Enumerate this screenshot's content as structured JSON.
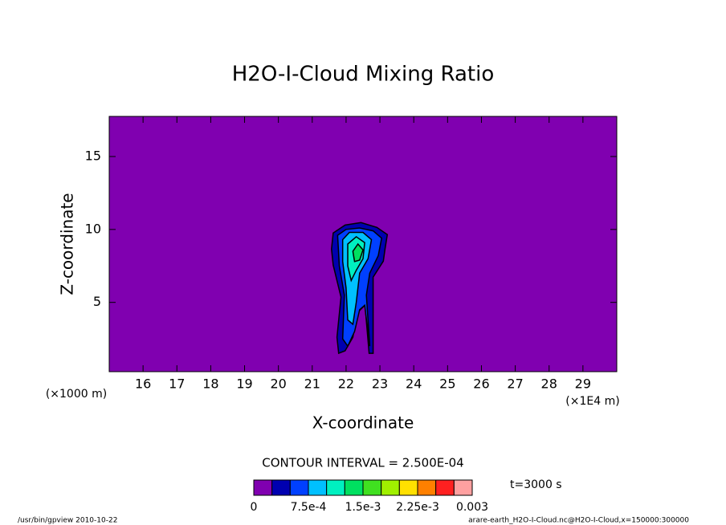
{
  "chart_data": {
    "type": "contour",
    "title": "H2O-I-Cloud Mixing Ratio",
    "x_label": "X-coordinate",
    "y_label": "Z-coordinate",
    "x_unit": "(×1E4 m)",
    "y_unit": "(×1000 m)",
    "contour_interval": "CONTOUR INTERVAL = 2.500E-04",
    "time_label": "t=3000 s",
    "footer_left": "/usr/bin/gpview  2010-10-22",
    "footer_right": "arare-earth_H2O-I-Cloud.nc@H2O-I-Cloud,x=150000:300000",
    "xlim": [
      15,
      30
    ],
    "ylim": [
      0.25,
      17.75
    ],
    "xticks": [
      16,
      17,
      18,
      19,
      20,
      21,
      22,
      23,
      24,
      25,
      26,
      27,
      28,
      29
    ],
    "yticks": [
      5,
      10,
      15
    ],
    "colorbar": {
      "levels": [
        0,
        0.00025,
        0.0005,
        0.00075,
        0.001,
        0.00125,
        0.0015,
        0.00175,
        0.002,
        0.00225,
        0.0025,
        0.00275,
        0.003
      ],
      "colors": [
        "#8000b0",
        "#0000b0",
        "#0040ff",
        "#00c0ff",
        "#00f0c0",
        "#00e060",
        "#40e020",
        "#a0f000",
        "#ffe000",
        "#ff8000",
        "#ff2020",
        "#ffa0a0"
      ],
      "ticks": [
        0,
        {
          "value": 0.00075,
          "label": "7.5e-4"
        },
        {
          "value": 0.0015,
          "label": "1.5e-3"
        },
        {
          "value": 0.00225,
          "label": "2.25e-3"
        },
        0.003
      ]
    },
    "contours": [
      {
        "level": 0.00025,
        "points": [
          [
            21.62,
            9.76
          ],
          [
            21.97,
            10.3
          ],
          [
            22.44,
            10.47
          ],
          [
            22.91,
            10.14
          ],
          [
            23.22,
            9.65
          ],
          [
            23.15,
            8.66
          ],
          [
            23.1,
            7.83
          ],
          [
            22.8,
            6.73
          ],
          [
            22.8,
            5.91
          ],
          [
            22.8,
            1.51
          ],
          [
            22.68,
            1.51
          ],
          [
            22.56,
            4.81
          ],
          [
            22.32,
            4.26
          ],
          [
            22.2,
            2.61
          ],
          [
            21.97,
            1.68
          ],
          [
            21.78,
            1.51
          ],
          [
            21.73,
            2.61
          ],
          [
            21.85,
            5.36
          ],
          [
            21.62,
            7.56
          ],
          [
            21.57,
            8.66
          ]
        ]
      },
      {
        "level": 0.0005,
        "points": [
          [
            21.75,
            9.6
          ],
          [
            22.0,
            10.0
          ],
          [
            22.4,
            10.1
          ],
          [
            22.8,
            9.9
          ],
          [
            23.05,
            9.4
          ],
          [
            22.95,
            8.2
          ],
          [
            22.7,
            7.0
          ],
          [
            22.6,
            5.5
          ],
          [
            22.7,
            2.0
          ],
          [
            22.55,
            4.8
          ],
          [
            22.4,
            4.5
          ],
          [
            22.25,
            3.0
          ],
          [
            22.05,
            2.0
          ],
          [
            21.9,
            2.5
          ],
          [
            21.95,
            5.5
          ],
          [
            21.8,
            7.5
          ]
        ]
      },
      {
        "level": 0.00075,
        "points": [
          [
            21.9,
            9.3
          ],
          [
            22.1,
            9.8
          ],
          [
            22.5,
            9.8
          ],
          [
            22.75,
            9.3
          ],
          [
            22.65,
            8.0
          ],
          [
            22.4,
            7.0
          ],
          [
            22.3,
            5.0
          ],
          [
            22.2,
            3.5
          ],
          [
            22.05,
            3.8
          ],
          [
            22.0,
            6.0
          ],
          [
            21.9,
            7.8
          ]
        ]
      },
      {
        "level": 0.001,
        "points": [
          [
            22.05,
            9.0
          ],
          [
            22.3,
            9.5
          ],
          [
            22.55,
            9.1
          ],
          [
            22.5,
            8.0
          ],
          [
            22.3,
            7.2
          ],
          [
            22.15,
            6.5
          ],
          [
            22.05,
            7.5
          ]
        ]
      },
      {
        "level": 0.00125,
        "points": [
          [
            22.2,
            8.5
          ],
          [
            22.35,
            9.0
          ],
          [
            22.5,
            8.6
          ],
          [
            22.4,
            7.9
          ],
          [
            22.25,
            7.8
          ]
        ]
      }
    ]
  }
}
